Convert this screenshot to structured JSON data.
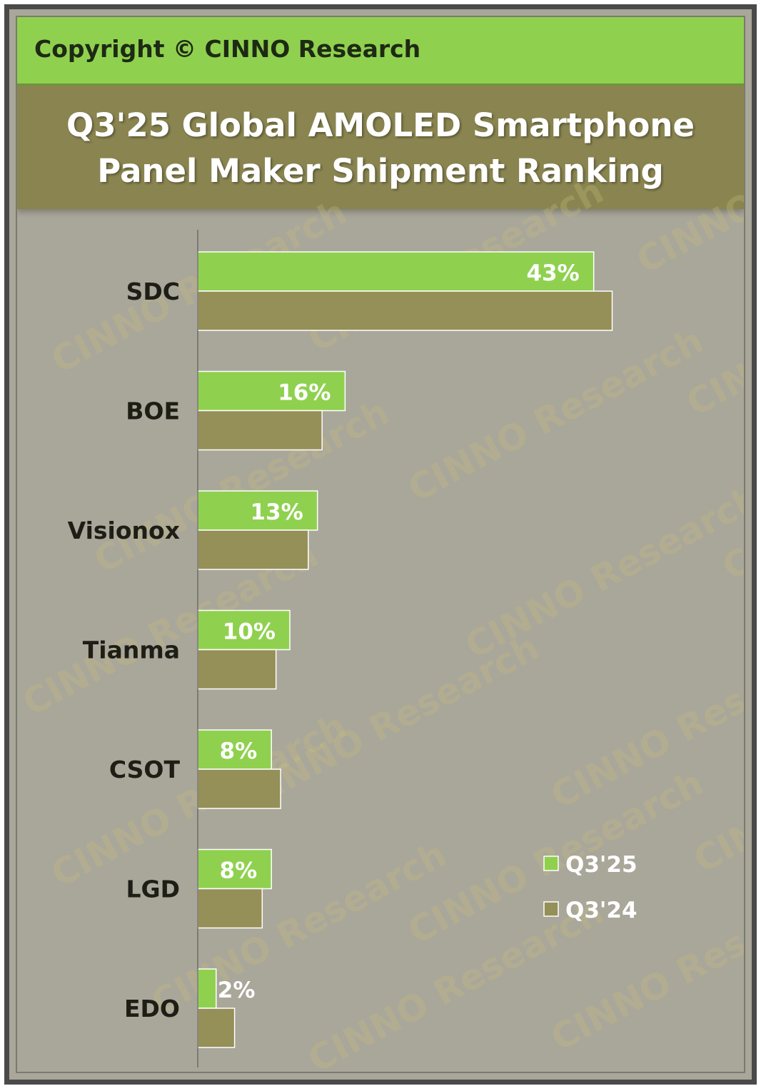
{
  "header": {
    "copyright": "Copyright © CINNO Research"
  },
  "chart_data": {
    "type": "bar",
    "orientation": "horizontal",
    "title_lines": [
      "Q3'25 Global AMOLED Smartphone",
      "Panel Maker Shipment Ranking"
    ],
    "categories": [
      "SDC",
      "BOE",
      "Visionox",
      "Tianma",
      "CSOT",
      "LGD",
      "EDO"
    ],
    "series": [
      {
        "name": "Q3'25",
        "color": "#8fd14f",
        "values": [
          43,
          16,
          13,
          10,
          8,
          8,
          2
        ],
        "labels": [
          "43%",
          "16%",
          "13%",
          "10%",
          "8%",
          "8%",
          "2%"
        ]
      },
      {
        "name": "Q3'24",
        "values": [
          45,
          13.5,
          12,
          8.5,
          9,
          7,
          4
        ],
        "color": "#958f58"
      }
    ],
    "xlim": [
      0,
      100
    ],
    "grid": false,
    "legend_position": "lower-right",
    "watermark_text": "CINNO Research"
  }
}
